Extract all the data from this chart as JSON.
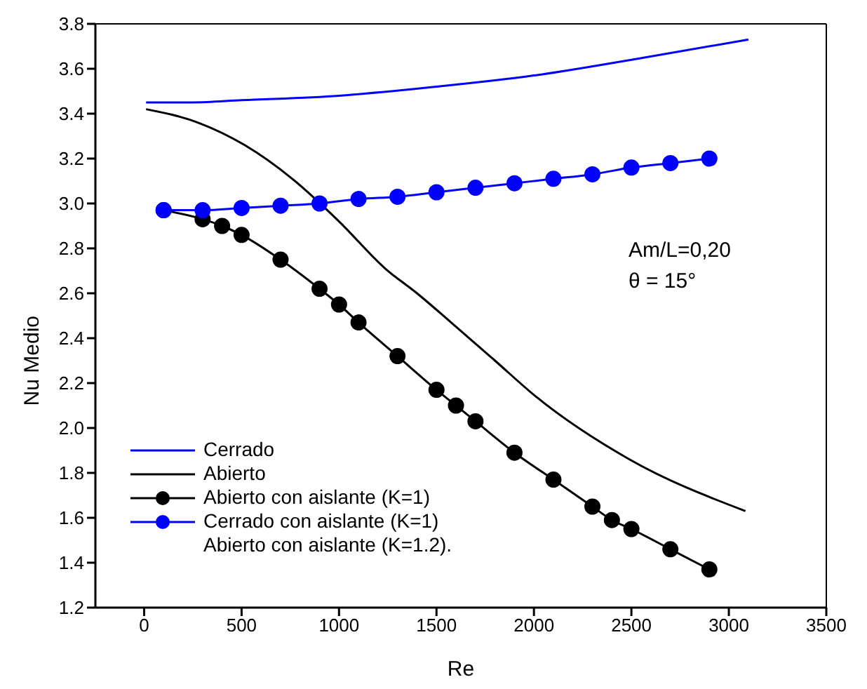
{
  "chart_data": {
    "type": "line",
    "xlabel": "Re",
    "ylabel": "Nu Medio",
    "xlim": [
      -250,
      3500
    ],
    "xticks": [
      0,
      500,
      1000,
      1500,
      2000,
      2500,
      3000,
      3500
    ],
    "ylim": [
      1.2,
      3.8
    ],
    "yticks": [
      1.2,
      1.4,
      1.6,
      1.8,
      {
        "value": 2,
        "label": "2.0"
      },
      2.2,
      2.4,
      2.6,
      2.8,
      {
        "value": 3,
        "label": "3.0"
      },
      3.2,
      3.4,
      3.6,
      3.8
    ],
    "legend": "bottom left",
    "line_style": "solid",
    "series": [
      {
        "name": "Cerrado",
        "color": "#0000ff",
        "marker": "none",
        "x": [
          10,
          250,
          500,
          1000,
          1500,
          2000,
          2500,
          3100
        ],
        "values": [
          3.45,
          3.45,
          3.46,
          3.48,
          3.52,
          3.57,
          3.64,
          3.73
        ]
      },
      {
        "name": "Abierto",
        "color": "#000000",
        "marker": "none",
        "x": [
          10,
          277,
          516,
          760,
          1000,
          1237,
          1400,
          1575,
          1800,
          2010,
          2490,
          3085
        ],
        "values": [
          3.42,
          3.36,
          3.26,
          3.11,
          2.92,
          2.71,
          2.6,
          2.47,
          2.3,
          2.14,
          1.86,
          1.63
        ]
      },
      {
        "name": "Abierto con aislante (K=1)",
        "color": "#000000",
        "marker": "circle",
        "x": [
          100,
          300,
          400,
          500,
          700,
          900,
          1000,
          1100,
          1300,
          1500,
          1600,
          1700,
          1900,
          2100,
          2300,
          2400,
          2500,
          2700,
          2900
        ],
        "values": [
          2.97,
          2.93,
          2.9,
          2.86,
          2.75,
          2.62,
          2.55,
          2.47,
          2.32,
          2.17,
          2.1,
          2.03,
          1.89,
          1.77,
          1.65,
          1.59,
          1.55,
          1.46,
          1.37
        ]
      },
      {
        "name": "Cerrado con aislante (K=1)",
        "color": "#0000ff",
        "marker": "circle",
        "x": [
          100,
          300,
          500,
          700,
          900,
          1100,
          1300,
          1500,
          1700,
          1900,
          2100,
          2300,
          2500,
          2700,
          2900
        ],
        "values": [
          2.97,
          2.97,
          2.98,
          2.99,
          3.0,
          3.02,
          3.03,
          3.05,
          3.07,
          3.09,
          3.11,
          3.13,
          3.16,
          3.18,
          3.2
        ]
      }
    ],
    "annotations": [
      "Am/L=0,20",
      "θ = 15°",
      "Abierto con aislante (K=1.2)."
    ]
  }
}
